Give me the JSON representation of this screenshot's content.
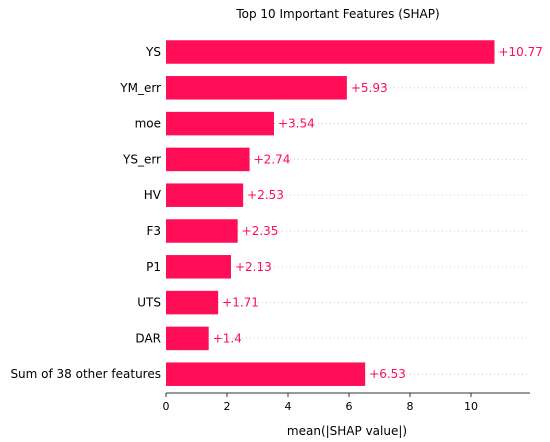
{
  "chart_data": {
    "type": "bar",
    "orientation": "horizontal",
    "title": "Top 10 Important Features (SHAP)",
    "xlabel": "mean(|SHAP value|)",
    "ylabel": "",
    "xlim": [
      0,
      12
    ],
    "xticks": [
      0,
      2,
      4,
      6,
      8,
      10
    ],
    "categories": [
      "YS",
      "YM_err",
      "moe",
      "YS_err",
      "HV",
      "F3",
      "P1",
      "UTS",
      "DAR",
      "Sum of 38 other features"
    ],
    "values": [
      10.77,
      5.93,
      3.54,
      2.74,
      2.53,
      2.35,
      2.13,
      1.71,
      1.4,
      6.53
    ],
    "value_labels": [
      "+10.77",
      "+5.93",
      "+3.54",
      "+2.74",
      "+2.53",
      "+2.35",
      "+2.13",
      "+1.71",
      "+1.4",
      "+6.53"
    ],
    "bar_color": "#ff0d57",
    "label_color": "#ff0d57",
    "grid": "dotted horizontal guides",
    "legend": "none"
  }
}
